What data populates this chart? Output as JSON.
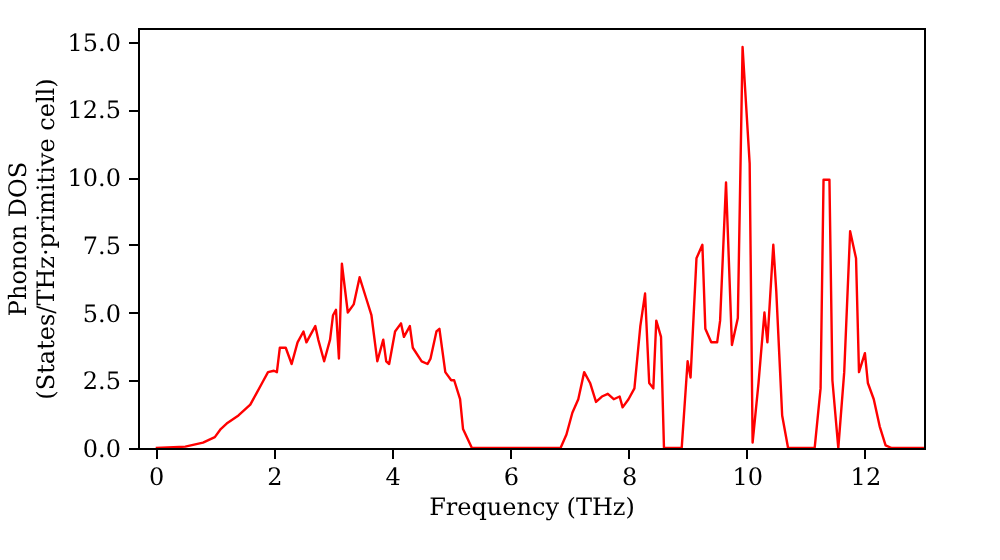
{
  "chart_data": {
    "type": "line",
    "xlabel": "Frequency (THz)",
    "ylabel": "Phonon DOS\n(States/THz·primitive cell)",
    "x": [
      0,
      0.5,
      0.8,
      1.0,
      1.1,
      1.2,
      1.4,
      1.6,
      1.7,
      1.8,
      1.9,
      2.0,
      2.05,
      2.1,
      2.2,
      2.3,
      2.4,
      2.5,
      2.55,
      2.6,
      2.7,
      2.75,
      2.85,
      2.95,
      3.0,
      3.05,
      3.1,
      3.15,
      3.25,
      3.35,
      3.45,
      3.55,
      3.65,
      3.75,
      3.85,
      3.9,
      3.95,
      4.05,
      4.15,
      4.2,
      4.3,
      4.35,
      4.5,
      4.6,
      4.65,
      4.75,
      4.8,
      4.9,
      5.0,
      5.05,
      5.15,
      5.2,
      5.35,
      6.85,
      6.95,
      7.05,
      7.15,
      7.25,
      7.35,
      7.45,
      7.55,
      7.65,
      7.75,
      7.85,
      7.9,
      8.0,
      8.1,
      8.2,
      8.28,
      8.35,
      8.42,
      8.47,
      8.55,
      8.6,
      8.9,
      9.0,
      9.05,
      9.15,
      9.25,
      9.3,
      9.4,
      9.5,
      9.55,
      9.65,
      9.75,
      9.85,
      9.93,
      10.05,
      10.1,
      10.2,
      10.3,
      10.35,
      10.45,
      10.5,
      10.6,
      10.7,
      11.15,
      11.25,
      11.3,
      11.4,
      11.45,
      11.55,
      11.65,
      11.75,
      11.85,
      11.9,
      12.0,
      12.05,
      12.15,
      12.25,
      12.35,
      12.45,
      13
    ],
    "series": [
      {
        "color": "#ff0000",
        "values": [
          0,
          0.05,
          0.2,
          0.4,
          0.7,
          0.9,
          1.2,
          1.6,
          2.0,
          2.4,
          2.8,
          2.85,
          2.8,
          3.7,
          3.7,
          3.1,
          3.9,
          4.3,
          3.9,
          4.1,
          4.5,
          4.0,
          3.2,
          4.0,
          4.9,
          5.1,
          3.3,
          6.8,
          5.0,
          5.3,
          6.3,
          5.6,
          4.9,
          3.2,
          4.0,
          3.2,
          3.1,
          4.3,
          4.6,
          4.1,
          4.5,
          3.7,
          3.2,
          3.1,
          3.3,
          4.3,
          4.4,
          2.8,
          2.5,
          2.5,
          1.8,
          0.7,
          0,
          0,
          0.5,
          1.3,
          1.8,
          2.8,
          2.4,
          1.7,
          1.9,
          2.0,
          1.8,
          1.9,
          1.5,
          1.8,
          2.2,
          4.5,
          5.7,
          2.4,
          2.2,
          4.7,
          4.1,
          0,
          0,
          3.2,
          2.6,
          7.0,
          7.5,
          4.4,
          3.9,
          3.9,
          4.7,
          9.8,
          3.8,
          4.8,
          14.8,
          10.5,
          0.2,
          2.4,
          5.0,
          3.9,
          7.5,
          5.8,
          1.2,
          0,
          0,
          2.2,
          9.9,
          9.9,
          2.5,
          0,
          2.8,
          8.0,
          7.0,
          2.8,
          3.5,
          2.4,
          1.8,
          0.8,
          0.1,
          0,
          0
        ]
      }
    ],
    "xlim": [
      -0.3,
      13
    ],
    "ylim": [
      0,
      15.5
    ],
    "xticks": [
      0,
      2,
      4,
      6,
      8,
      10,
      12
    ],
    "yticks": [
      {
        "value": 0,
        "label": "0.0"
      },
      {
        "value": 2.5,
        "label": "2.5"
      },
      {
        "value": 5,
        "label": "5.0"
      },
      {
        "value": 7.5,
        "label": "7.5"
      },
      {
        "value": 10,
        "label": "10.0"
      },
      {
        "value": 12.5,
        "label": "12.5"
      },
      {
        "value": 15,
        "label": "15.0"
      }
    ],
    "grid": false,
    "marker": "none",
    "line_style": "solid"
  }
}
